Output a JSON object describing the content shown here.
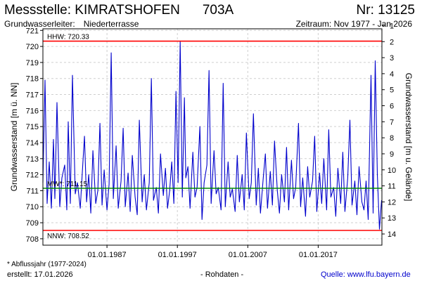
{
  "header": {
    "title": "Messstelle: KIMRATSHOFEN",
    "station_id": "703A",
    "number": "Nr: 13125",
    "aquifer_label": "Grundwasserleiter:",
    "aquifer_value": "Niederterrasse",
    "period": "Zeitraum: Nov 1977 - Jan 2026"
  },
  "footer": {
    "footnote": "* Abflussjahr (1977-2024)",
    "created": "erstellt:  17.01.2026",
    "raw_data": "- Rohdaten -",
    "source": "Quelle: www.lfu.bayern.de"
  },
  "chart_data": {
    "type": "line",
    "xlabel": "",
    "ylabel_left": "Grundwasserstand [m ü. NN]",
    "ylabel_right": "Grundwasserstand [m u. Gelände]",
    "x_range": [
      1977.9,
      2026.05
    ],
    "ylim": [
      707.6,
      721.1
    ],
    "right_axis_ticks": [
      1,
      2,
      3,
      4,
      5,
      6,
      7,
      8,
      9,
      10,
      11,
      12,
      13,
      14
    ],
    "right_axis_offset": 722.3,
    "y_ticks": [
      708,
      709,
      710,
      711,
      712,
      713,
      714,
      715,
      716,
      717,
      718,
      719,
      720,
      721
    ],
    "x_ticks": [
      {
        "label": "01.01.1987",
        "value": 1987.0
      },
      {
        "label": "01.01.1997",
        "value": 1997.0
      },
      {
        "label": "01.01.2007",
        "value": 2007.0
      },
      {
        "label": "01.01.2017",
        "value": 2017.0
      }
    ],
    "grid": true,
    "reference_lines": [
      {
        "label": "HHW: 720.33",
        "value": 720.33,
        "color": "#ff0000"
      },
      {
        "label": "MW*: 711.15",
        "value": 711.15,
        "color": "#008800"
      },
      {
        "label": "NNW: 708.52",
        "value": 708.52,
        "color": "#ff0000"
      }
    ],
    "series": [
      {
        "color": "#0000cc",
        "x": [
          1977.9,
          1978.2,
          1978.5,
          1978.8,
          1979.1,
          1979.4,
          1979.6,
          1979.9,
          1980.3,
          1980.6,
          1981.0,
          1981.3,
          1981.5,
          1981.8,
          1982.1,
          1982.5,
          1982.8,
          1983.2,
          1983.5,
          1983.8,
          1984.1,
          1984.4,
          1984.7,
          1985.0,
          1985.4,
          1985.7,
          1986.0,
          1986.3,
          1986.6,
          1987.0,
          1987.3,
          1987.6,
          1987.9,
          1988.3,
          1988.6,
          1989.0,
          1989.3,
          1989.6,
          1990.0,
          1990.3,
          1990.6,
          1991.0,
          1991.3,
          1991.6,
          1992.0,
          1992.3,
          1992.6,
          1993.0,
          1993.3,
          1993.6,
          1994.0,
          1994.3,
          1994.6,
          1995.0,
          1995.3,
          1995.6,
          1995.9,
          1996.2,
          1996.5,
          1996.8,
          1997.1,
          1997.4,
          1997.7,
          1998.0,
          1998.2,
          1998.5,
          1998.8,
          1999.2,
          1999.5,
          1999.8,
          2000.2,
          2000.5,
          2000.8,
          2001.2,
          2001.5,
          2001.8,
          2002.2,
          2002.5,
          2002.8,
          2003.2,
          2003.5,
          2003.8,
          2004.2,
          2004.5,
          2004.8,
          2005.2,
          2005.5,
          2005.8,
          2006.2,
          2006.5,
          2006.8,
          2007.2,
          2007.5,
          2007.8,
          2008.2,
          2008.5,
          2008.8,
          2009.2,
          2009.5,
          2009.8,
          2010.2,
          2010.5,
          2010.8,
          2011.2,
          2011.5,
          2011.8,
          2012.2,
          2012.5,
          2012.8,
          2013.2,
          2013.5,
          2013.8,
          2014.2,
          2014.5,
          2014.8,
          2015.2,
          2015.5,
          2015.8,
          2016.2,
          2016.5,
          2016.8,
          2017.2,
          2017.5,
          2017.8,
          2018.2,
          2018.5,
          2018.8,
          2019.2,
          2019.5,
          2019.8,
          2020.2,
          2020.5,
          2020.8,
          2021.2,
          2021.5,
          2021.8,
          2022.2,
          2022.5,
          2022.8,
          2023.2,
          2023.5,
          2023.8,
          2024.1,
          2024.3,
          2024.5,
          2024.8,
          2025.1,
          2025.4,
          2025.7,
          2026.0
        ],
        "y": [
          711.5,
          717.9,
          710.2,
          712.8,
          709.9,
          714.2,
          710.5,
          716.5,
          710.0,
          711.8,
          712.6,
          709.8,
          715.3,
          710.2,
          718.2,
          710.8,
          711.5,
          709.9,
          712.2,
          714.4,
          710.3,
          712.0,
          709.6,
          713.5,
          710.2,
          711.0,
          715.2,
          710.1,
          712.3,
          709.8,
          711.4,
          719.6,
          710.5,
          713.8,
          709.9,
          711.6,
          714.9,
          710.0,
          712.1,
          709.7,
          713.2,
          710.6,
          709.5,
          715.4,
          710.3,
          712.0,
          709.8,
          711.5,
          718.0,
          710.4,
          711.2,
          709.6,
          713.3,
          710.7,
          712.4,
          709.9,
          711.0,
          712.8,
          710.2,
          717.2,
          711.5,
          720.3,
          710.6,
          716.8,
          711.8,
          712.5,
          709.9,
          713.4,
          710.6,
          711.2,
          715.0,
          709.2,
          711.5,
          712.6,
          718.5,
          710.2,
          713.5,
          710.8,
          711.2,
          709.8,
          717.7,
          710.0,
          712.8,
          710.6,
          711.1,
          709.7,
          713.2,
          710.3,
          712.0,
          709.8,
          714.6,
          710.5,
          711.5,
          715.8,
          710.1,
          712.4,
          709.6,
          711.8,
          713.3,
          709.9,
          712.2,
          710.1,
          714.1,
          711.0,
          709.6,
          712.0,
          710.3,
          713.7,
          709.8,
          712.9,
          710.5,
          711.2,
          715.2,
          710.0,
          711.8,
          709.4,
          712.5,
          710.6,
          711.6,
          714.4,
          709.7,
          712.1,
          710.2,
          713.0,
          709.8,
          714.8,
          710.6,
          711.2,
          709.4,
          712.4,
          710.2,
          713.4,
          709.7,
          711.8,
          715.4,
          710.1,
          711.6,
          709.5,
          712.5,
          710.3,
          709.8,
          711.6,
          709.2,
          713.8,
          718.2,
          709.6,
          719.1,
          712.0,
          708.6,
          710.4
        ]
      }
    ]
  }
}
